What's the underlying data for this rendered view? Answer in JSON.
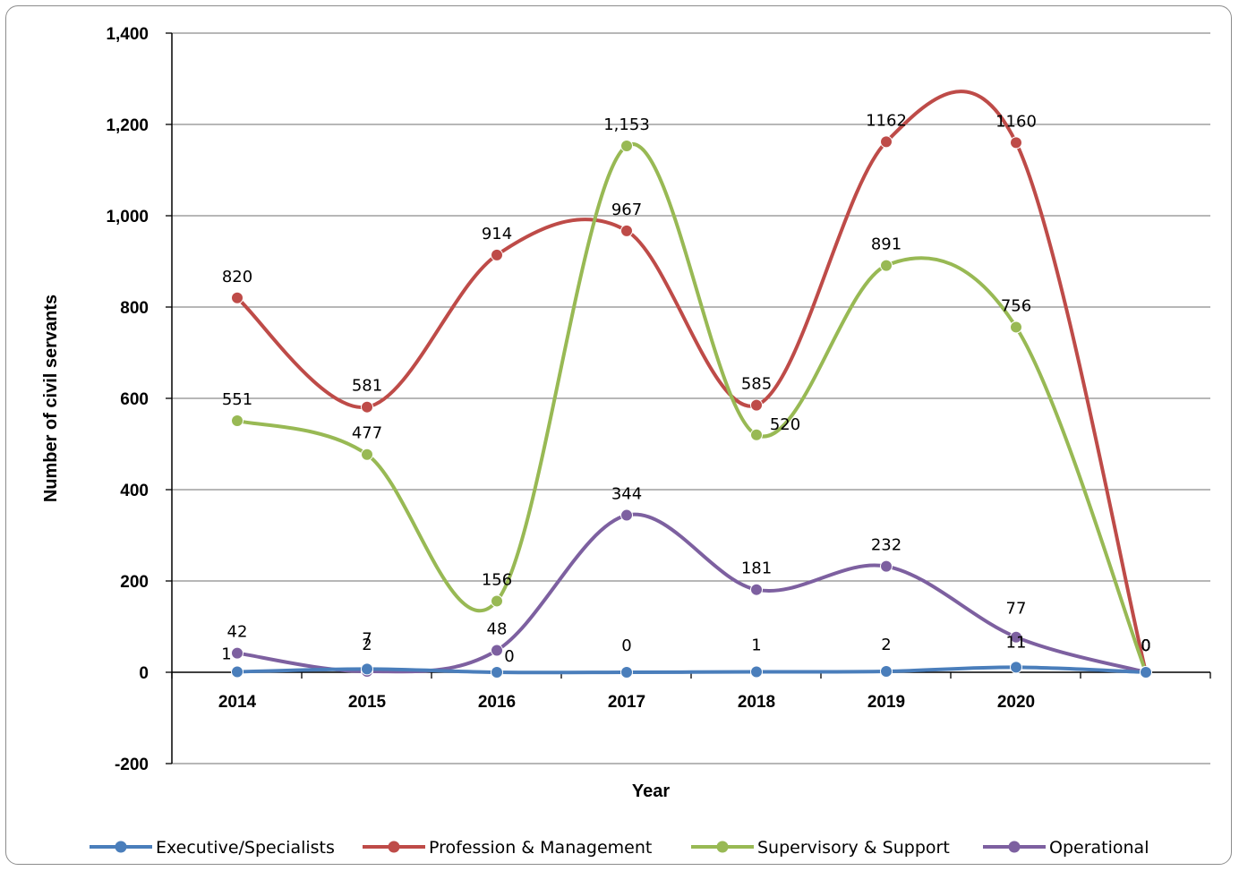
{
  "chart_data": {
    "type": "line",
    "smooth": true,
    "categories": [
      "2014",
      "2015",
      "2016",
      "2017",
      "2018",
      "2019",
      "2020",
      ""
    ],
    "xlabel": "Year",
    "ylabel": "Number of civil servants",
    "ylim": [
      -200,
      1400
    ],
    "yticks": [
      -200,
      0,
      200,
      400,
      600,
      800,
      1000,
      1200,
      1400
    ],
    "ytick_labels": [
      "-200",
      "0",
      "200",
      "400",
      "600",
      "800",
      "1,000",
      "1,200",
      "1,400"
    ],
    "grid": "horizontal",
    "legend_position": "bottom",
    "series": [
      {
        "name": "Executive/Specialists",
        "color": "#4a7ebb",
        "values": [
          1,
          7,
          0,
          0,
          1,
          2,
          11,
          0
        ],
        "labels": [
          "1",
          "7",
          "0",
          "0",
          "1",
          "2",
          "11",
          "0"
        ]
      },
      {
        "name": "Profession & Management",
        "color": "#be4b48",
        "values": [
          820,
          581,
          914,
          967,
          585,
          1162,
          1160,
          0
        ],
        "labels": [
          "820",
          "581",
          "914",
          "967",
          "585",
          "1162",
          "1160",
          "0"
        ]
      },
      {
        "name": "Supervisory & Support",
        "color": "#98b954",
        "values": [
          551,
          477,
          156,
          1153,
          520,
          891,
          756,
          0
        ],
        "labels": [
          "551",
          "477",
          "156",
          "1,153",
          "520",
          "891",
          "756",
          "0"
        ]
      },
      {
        "name": "Operational",
        "color": "#7d60a0",
        "values": [
          42,
          2,
          48,
          344,
          181,
          232,
          77,
          0
        ],
        "labels": [
          "42",
          "2",
          "48",
          "344",
          "181",
          "232",
          "77",
          "0"
        ]
      }
    ]
  }
}
